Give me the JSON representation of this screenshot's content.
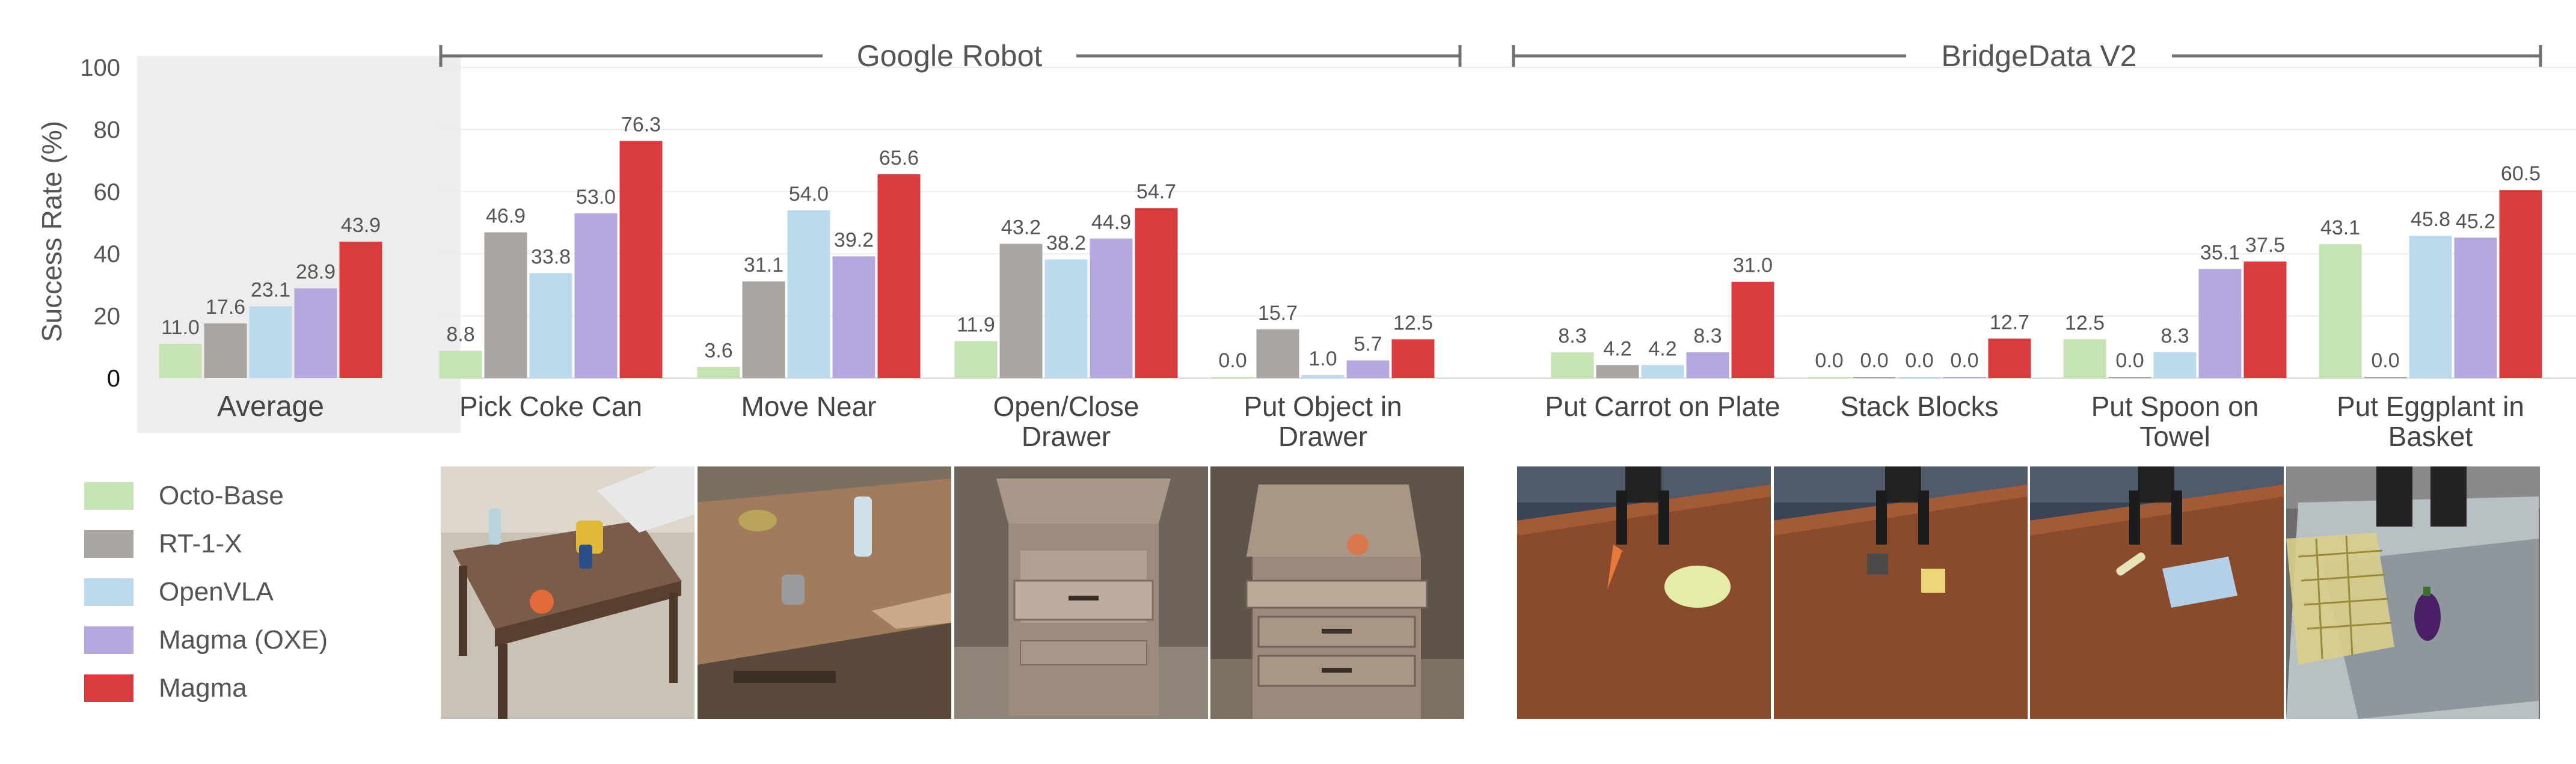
{
  "chart_data": {
    "type": "bar",
    "ylabel": "Success Rate (%)",
    "ylim": [
      0,
      100
    ],
    "yticks": [
      "0",
      "20",
      "40",
      "60",
      "80",
      "100"
    ],
    "grid": true,
    "legend_placement": "bottom-left",
    "series": [
      {
        "name": "Octo-Base",
        "color": "#c5e3b3"
      },
      {
        "name": "RT-1-X",
        "color": "#a8a5a2"
      },
      {
        "name": "OpenVLA",
        "color": "#bcd9ee"
      },
      {
        "name": "Magma (OXE)",
        "color": "#b5a8de"
      },
      {
        "name": "Magma",
        "color": "#d93c3f"
      }
    ],
    "groups": [
      {
        "title": "Google Robot",
        "tasks": [
          0,
          1,
          2,
          3
        ]
      },
      {
        "title": "BridgeData V2",
        "tasks": [
          4,
          5,
          6,
          7
        ]
      }
    ],
    "average": {
      "label": "Average",
      "values": [
        11.0,
        17.6,
        23.1,
        28.9,
        43.9
      ]
    },
    "tasks": [
      {
        "label": [
          "Pick Coke Can"
        ],
        "values": [
          8.8,
          46.9,
          33.8,
          53.0,
          76.3
        ]
      },
      {
        "label": [
          "Move Near"
        ],
        "values": [
          3.6,
          31.1,
          54.0,
          39.2,
          65.6
        ]
      },
      {
        "label": [
          "Open/Close",
          "Drawer"
        ],
        "values": [
          11.9,
          43.2,
          38.2,
          44.9,
          54.7
        ]
      },
      {
        "label": [
          "Put Object in",
          "Drawer"
        ],
        "values": [
          0.0,
          15.7,
          1.0,
          5.7,
          12.5
        ]
      },
      {
        "label": [
          "Put Carrot on Plate"
        ],
        "values": [
          8.3,
          4.2,
          4.2,
          8.3,
          31.0
        ]
      },
      {
        "label": [
          "Stack Blocks"
        ],
        "values": [
          0.0,
          0.0,
          0.0,
          0.0,
          12.7
        ]
      },
      {
        "label": [
          "Put Spoon on",
          "Towel"
        ],
        "values": [
          12.5,
          0.0,
          8.3,
          35.1,
          37.5
        ]
      },
      {
        "label": [
          "Put Eggplant in",
          "Basket"
        ],
        "values": [
          43.1,
          0.0,
          45.8,
          45.2,
          60.5
        ]
      }
    ]
  },
  "legend": {
    "items": [
      {
        "label": "Octo-Base",
        "color": "#c5e3b3"
      },
      {
        "label": "RT-1-X",
        "color": "#a8a5a2"
      },
      {
        "label": "OpenVLA",
        "color": "#bcd9ee"
      },
      {
        "label": "Magma (OXE)",
        "color": "#b5a8de"
      },
      {
        "label": "Magma",
        "color": "#d93c3f"
      }
    ]
  },
  "photos": [
    {
      "name": "photo-pick-coke-can"
    },
    {
      "name": "photo-move-near"
    },
    {
      "name": "photo-open-close-drawer"
    },
    {
      "name": "photo-put-object-in-drawer"
    },
    {
      "name": "photo-put-carrot-on-plate"
    },
    {
      "name": "photo-stack-blocks"
    },
    {
      "name": "photo-put-spoon-on-towel"
    },
    {
      "name": "photo-put-eggplant-in-basket"
    }
  ]
}
